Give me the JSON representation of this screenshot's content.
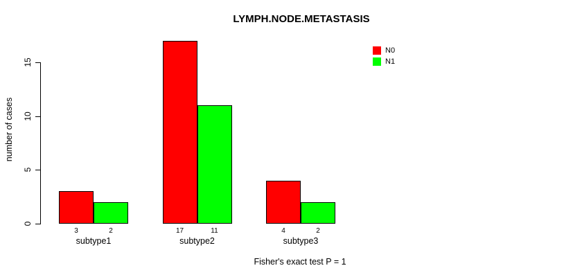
{
  "chart_data": {
    "type": "bar",
    "title": "LYMPH.NODE.METASTASIS",
    "ylabel": "number of cases",
    "xlabel": "",
    "categories": [
      "subtype1",
      "subtype2",
      "subtype3"
    ],
    "series": [
      {
        "name": "N0",
        "color": "#ff0000",
        "values": [
          3,
          17,
          4
        ]
      },
      {
        "name": "N1",
        "color": "#00ff00",
        "values": [
          2,
          11,
          2
        ]
      }
    ],
    "yticks": [
      0,
      5,
      10,
      15
    ],
    "ylim": [
      0,
      17
    ],
    "grid": false,
    "legend_position": "top-right",
    "show_values_under_bars": true,
    "footer": "Fisher's exact test P = 1"
  }
}
